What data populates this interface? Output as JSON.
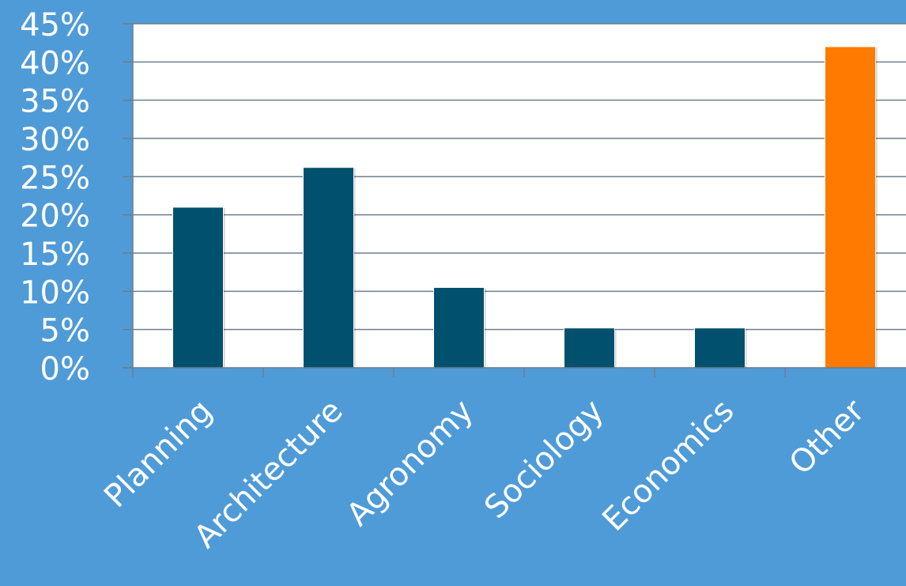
{
  "colors": {
    "background": "#4f9bd7",
    "plot_area": "#ffffff",
    "grid": "#6b7f8c",
    "bar_default": "#00506e",
    "bar_highlight": "#ff7a00",
    "text": "#ffffff"
  },
  "chart_data": {
    "type": "bar",
    "categories": [
      "Planning",
      "Architecture",
      "Agronomy",
      "Sociology",
      "Economics",
      "Other"
    ],
    "values": [
      21,
      26.2,
      10.5,
      5.2,
      5.2,
      42
    ],
    "bar_colors": [
      "#00506e",
      "#00506e",
      "#00506e",
      "#00506e",
      "#00506e",
      "#ff7a00"
    ],
    "ylim": [
      0,
      45
    ],
    "yticks": [
      0,
      5,
      10,
      15,
      20,
      25,
      30,
      35,
      40,
      45
    ],
    "ytick_labels": [
      "0%",
      "5%",
      "10%",
      "15%",
      "20%",
      "25%",
      "30%",
      "35%",
      "40%",
      "45%"
    ],
    "title": "",
    "xlabel": "",
    "ylabel": "",
    "grid": true,
    "legend": "none"
  }
}
